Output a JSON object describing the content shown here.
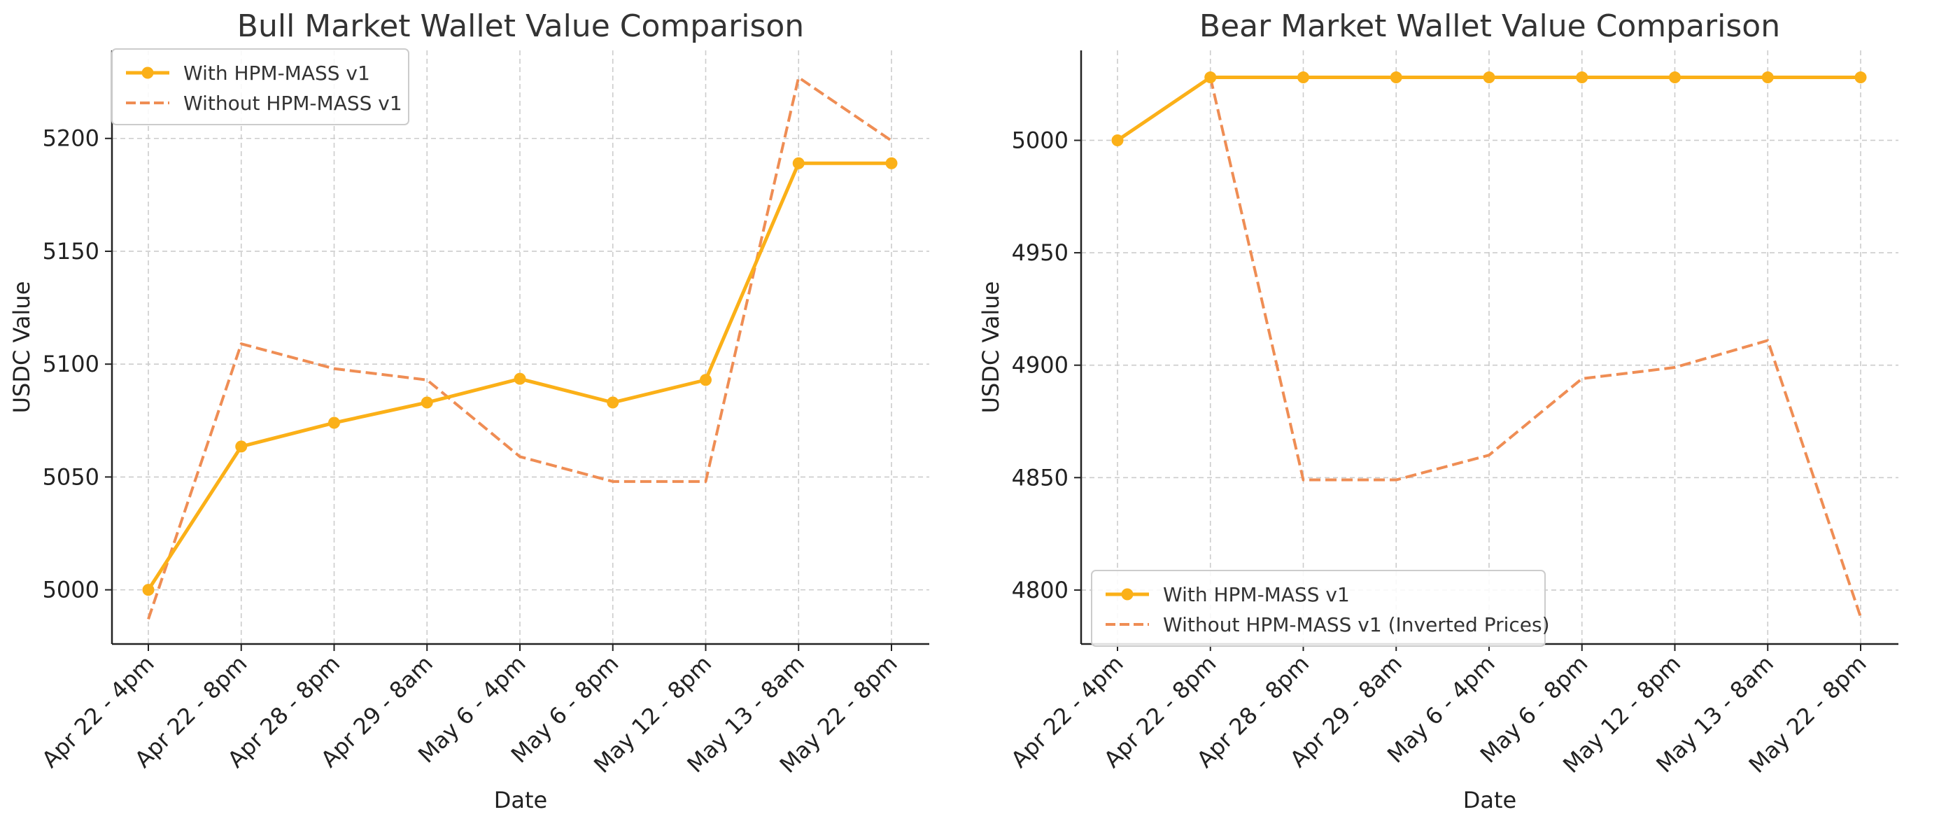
{
  "colors": {
    "with": "#fbb018",
    "without": "#ef8d54"
  },
  "chart_data": [
    {
      "type": "line",
      "title": "Bull Market Wallet Value Comparison",
      "xlabel": "Date",
      "ylabel": "USDC Value",
      "categories": [
        "Apr 22 - 4pm",
        "Apr 22 - 8pm",
        "Apr 28 - 8pm",
        "Apr 29 - 8am",
        "May 6 - 4pm",
        "May 6 - 8pm",
        "May 12 - 8pm",
        "May 13 - 8am",
        "May 22 - 8pm"
      ],
      "yticks": [
        5000,
        5050,
        5100,
        5150,
        5200
      ],
      "ylim": [
        4976,
        5239
      ],
      "grid": true,
      "legend_position": "upper-left",
      "series": [
        {
          "name": "With HPM-MASS v1",
          "style": "solid-marker",
          "values": [
            5000,
            5063.5,
            5074,
            5083,
            5093.5,
            5083,
            5093,
            5189,
            5189
          ]
        },
        {
          "name": "Without HPM-MASS v1",
          "style": "dashed",
          "values": [
            4987,
            5109,
            5098,
            5093,
            5059,
            5048,
            5048,
            5227,
            5199
          ]
        }
      ]
    },
    {
      "type": "line",
      "title": "Bear Market Wallet Value Comparison",
      "xlabel": "Date",
      "ylabel": "USDC Value",
      "categories": [
        "Apr 22 - 4pm",
        "Apr 22 - 8pm",
        "Apr 28 - 8pm",
        "Apr 29 - 8am",
        "May 6 - 4pm",
        "May 6 - 8pm",
        "May 12 - 8pm",
        "May 13 - 8am",
        "May 22 - 8pm"
      ],
      "yticks": [
        4800,
        4850,
        4900,
        4950,
        5000
      ],
      "ylim": [
        4776,
        5040
      ],
      "grid": true,
      "legend_position": "lower-left",
      "series": [
        {
          "name": "With HPM-MASS v1",
          "style": "solid-marker",
          "values": [
            5000,
            5028,
            5028,
            5028,
            5028,
            5028,
            5028,
            5028,
            5028
          ]
        },
        {
          "name": "Without HPM-MASS v1 (Inverted Prices)",
          "style": "dashed",
          "values": [
            5000,
            5028,
            4849,
            4849,
            4860,
            4894,
            4899,
            4911,
            4788
          ]
        }
      ]
    }
  ]
}
